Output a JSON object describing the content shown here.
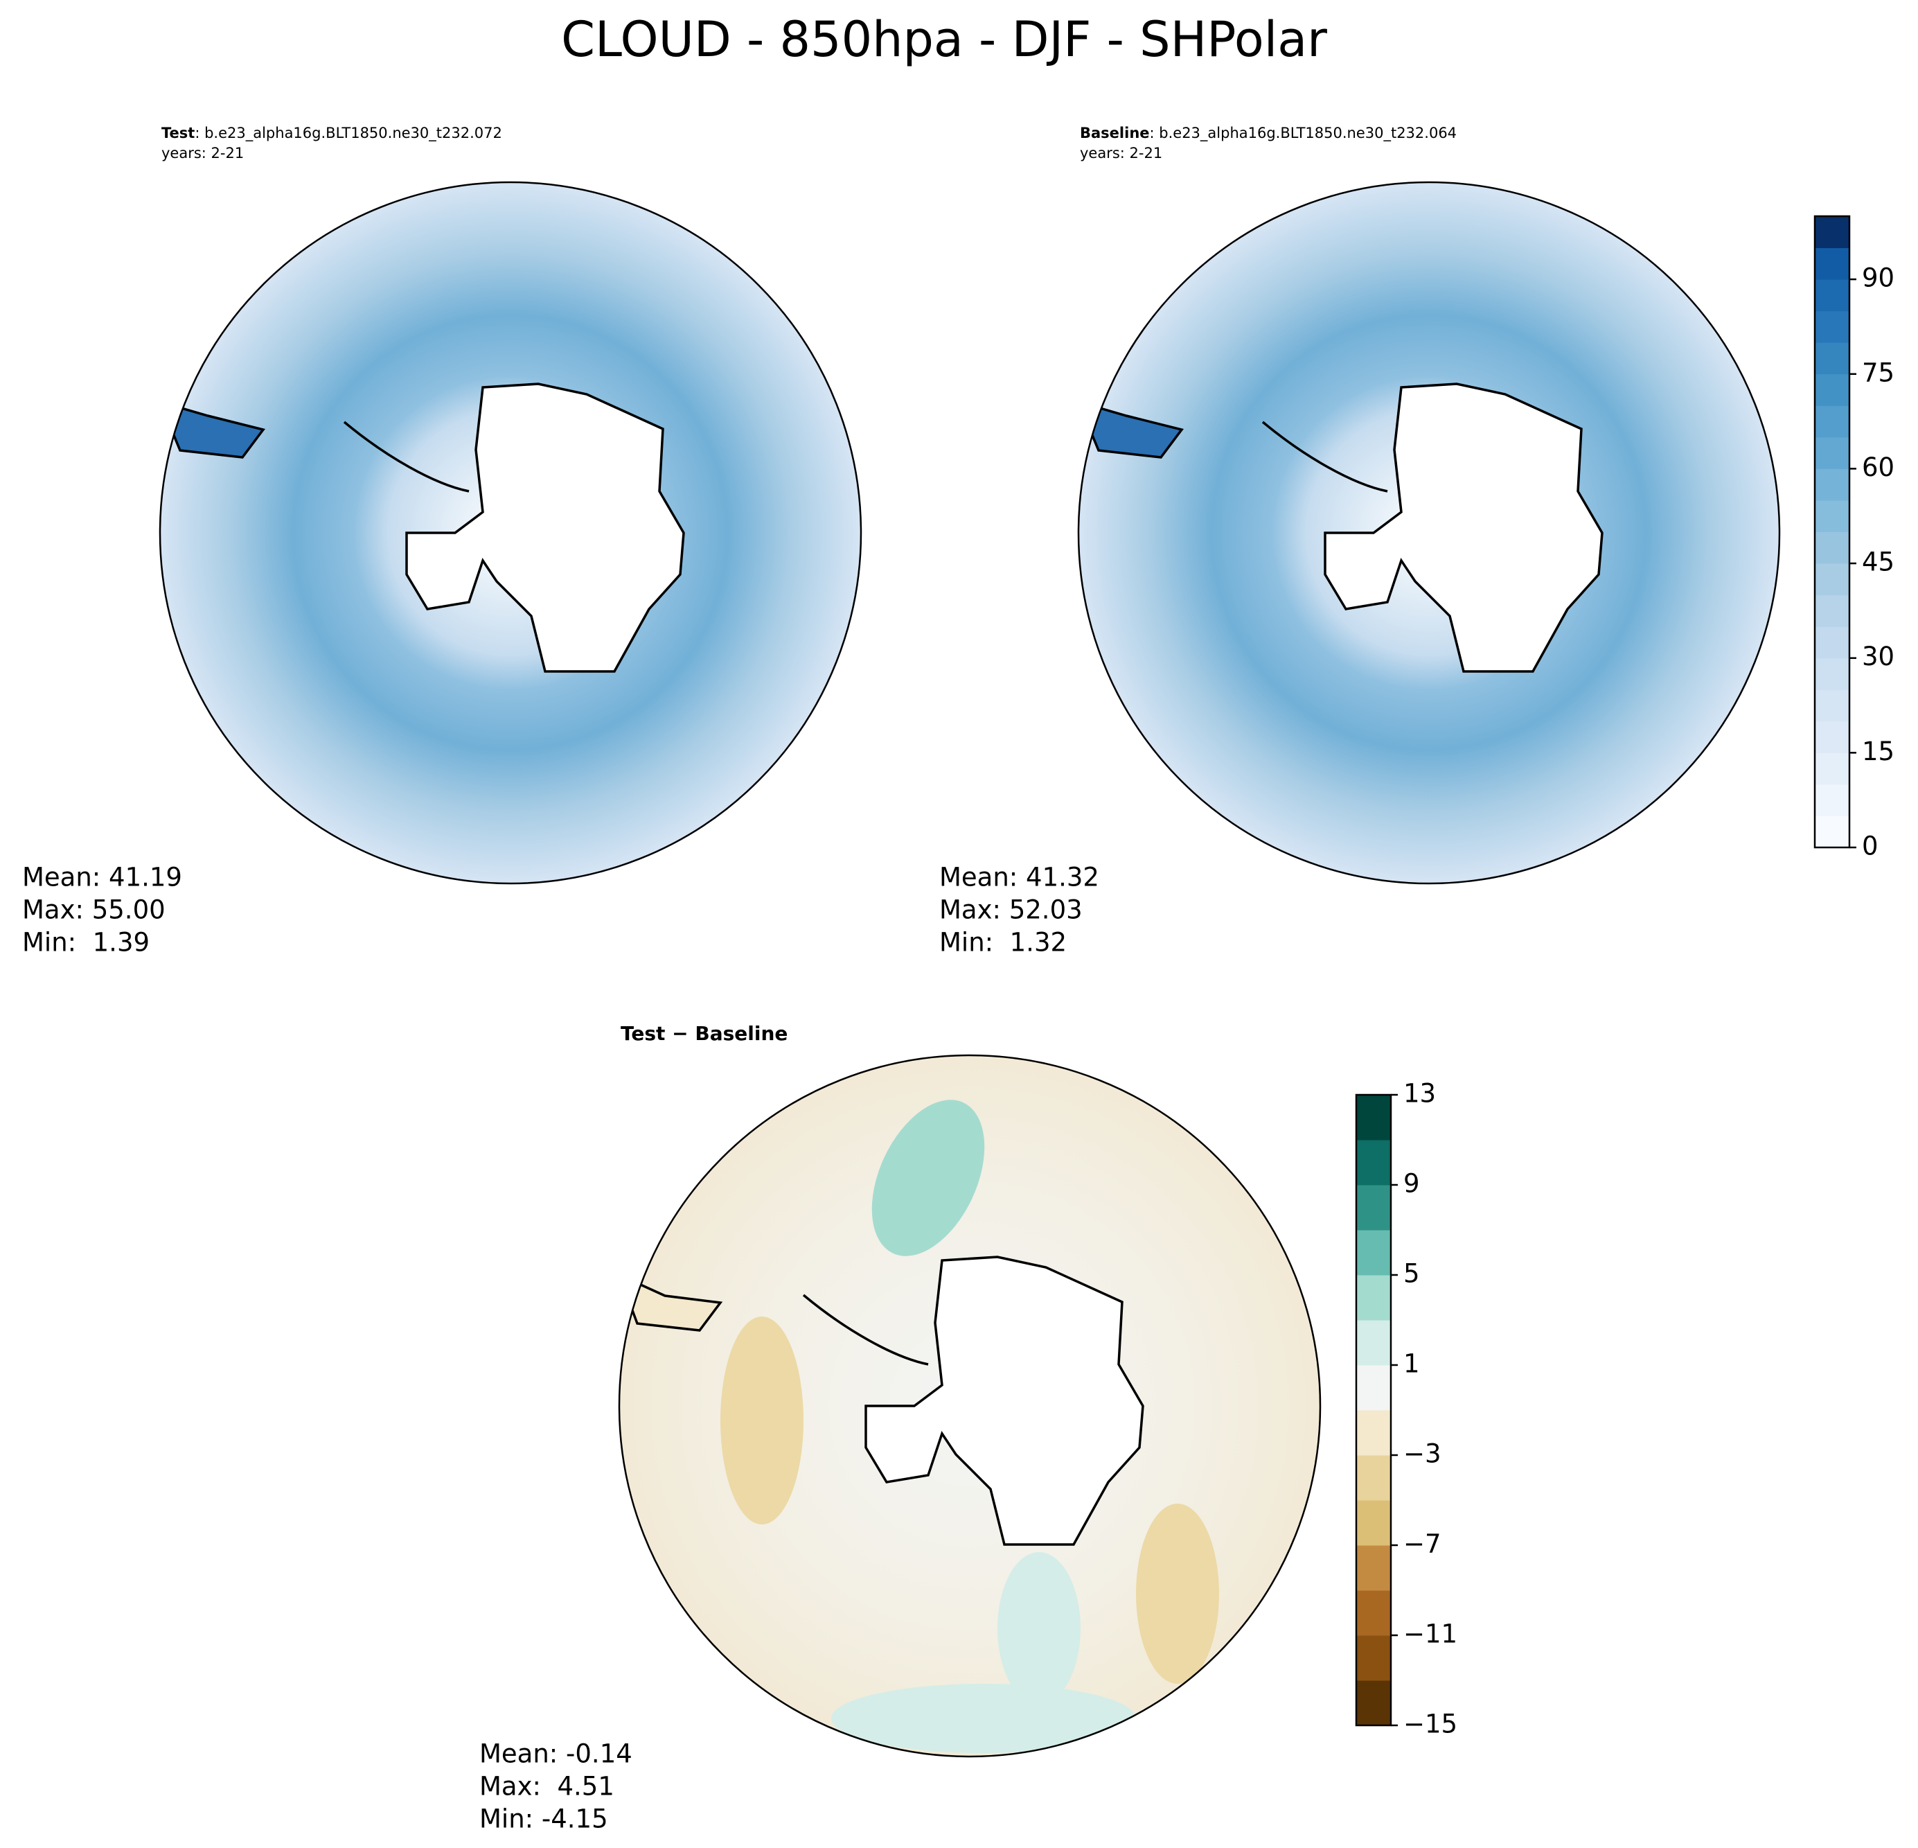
{
  "title": "CLOUD - 850hpa - DJF - SHPolar",
  "panels": [
    {
      "label": "Test",
      "caption": ": b.e23_alpha16g.BLT1850.ne30_t232.072",
      "years": "years: 2-21",
      "stats": [
        "Mean: 41.19",
        "Max: 55.00",
        "Min:  1.39"
      ]
    },
    {
      "label": "Baseline",
      "caption": ": b.e23_alpha16g.BLT1850.ne30_t232.064",
      "years": "years: 2-21",
      "stats": [
        "Mean: 41.32",
        "Max: 52.03",
        "Min:  1.32"
      ]
    },
    {
      "label": "Test − Baseline",
      "stats": [
        "Mean: -0.14",
        "Max:  4.51",
        "Min: -4.15"
      ]
    }
  ],
  "colorbars": [
    {
      "ylim": [
        0,
        100
      ],
      "yticks": [
        0,
        15,
        30,
        45,
        60,
        75,
        90
      ],
      "colors": [
        "#f7fbff",
        "#eef5fc",
        "#e5eff9",
        "#dde9f6",
        "#d6e5f4",
        "#cde0f1",
        "#c2d9ee",
        "#b6d3e9",
        "#a8cce4",
        "#99c4e0",
        "#87bddc",
        "#75b3d8",
        "#63a8d3",
        "#539ecd",
        "#4292c6",
        "#3585bf",
        "#2877b8",
        "#1c6aaf",
        "#115ca5",
        "#08306b"
      ]
    },
    {
      "ylim": [
        -15,
        13
      ],
      "yticks": [
        {
          "value": -15,
          "label": "−15"
        },
        {
          "value": -11,
          "label": "−11"
        },
        {
          "value": -7,
          "label": "−7"
        },
        {
          "value": -3,
          "label": "−3"
        },
        1,
        5,
        9,
        13
      ],
      "colors": [
        "#5a3405",
        "#8a5110",
        "#a96822",
        "#c38b41",
        "#dcbf77",
        "#e9d39c",
        "#f4e8cd",
        "#f3f5f4",
        "#d4ede8",
        "#a4dbcf",
        "#66bcb0",
        "#2f9286",
        "#0d6f66",
        "#00463c"
      ]
    }
  ]
}
